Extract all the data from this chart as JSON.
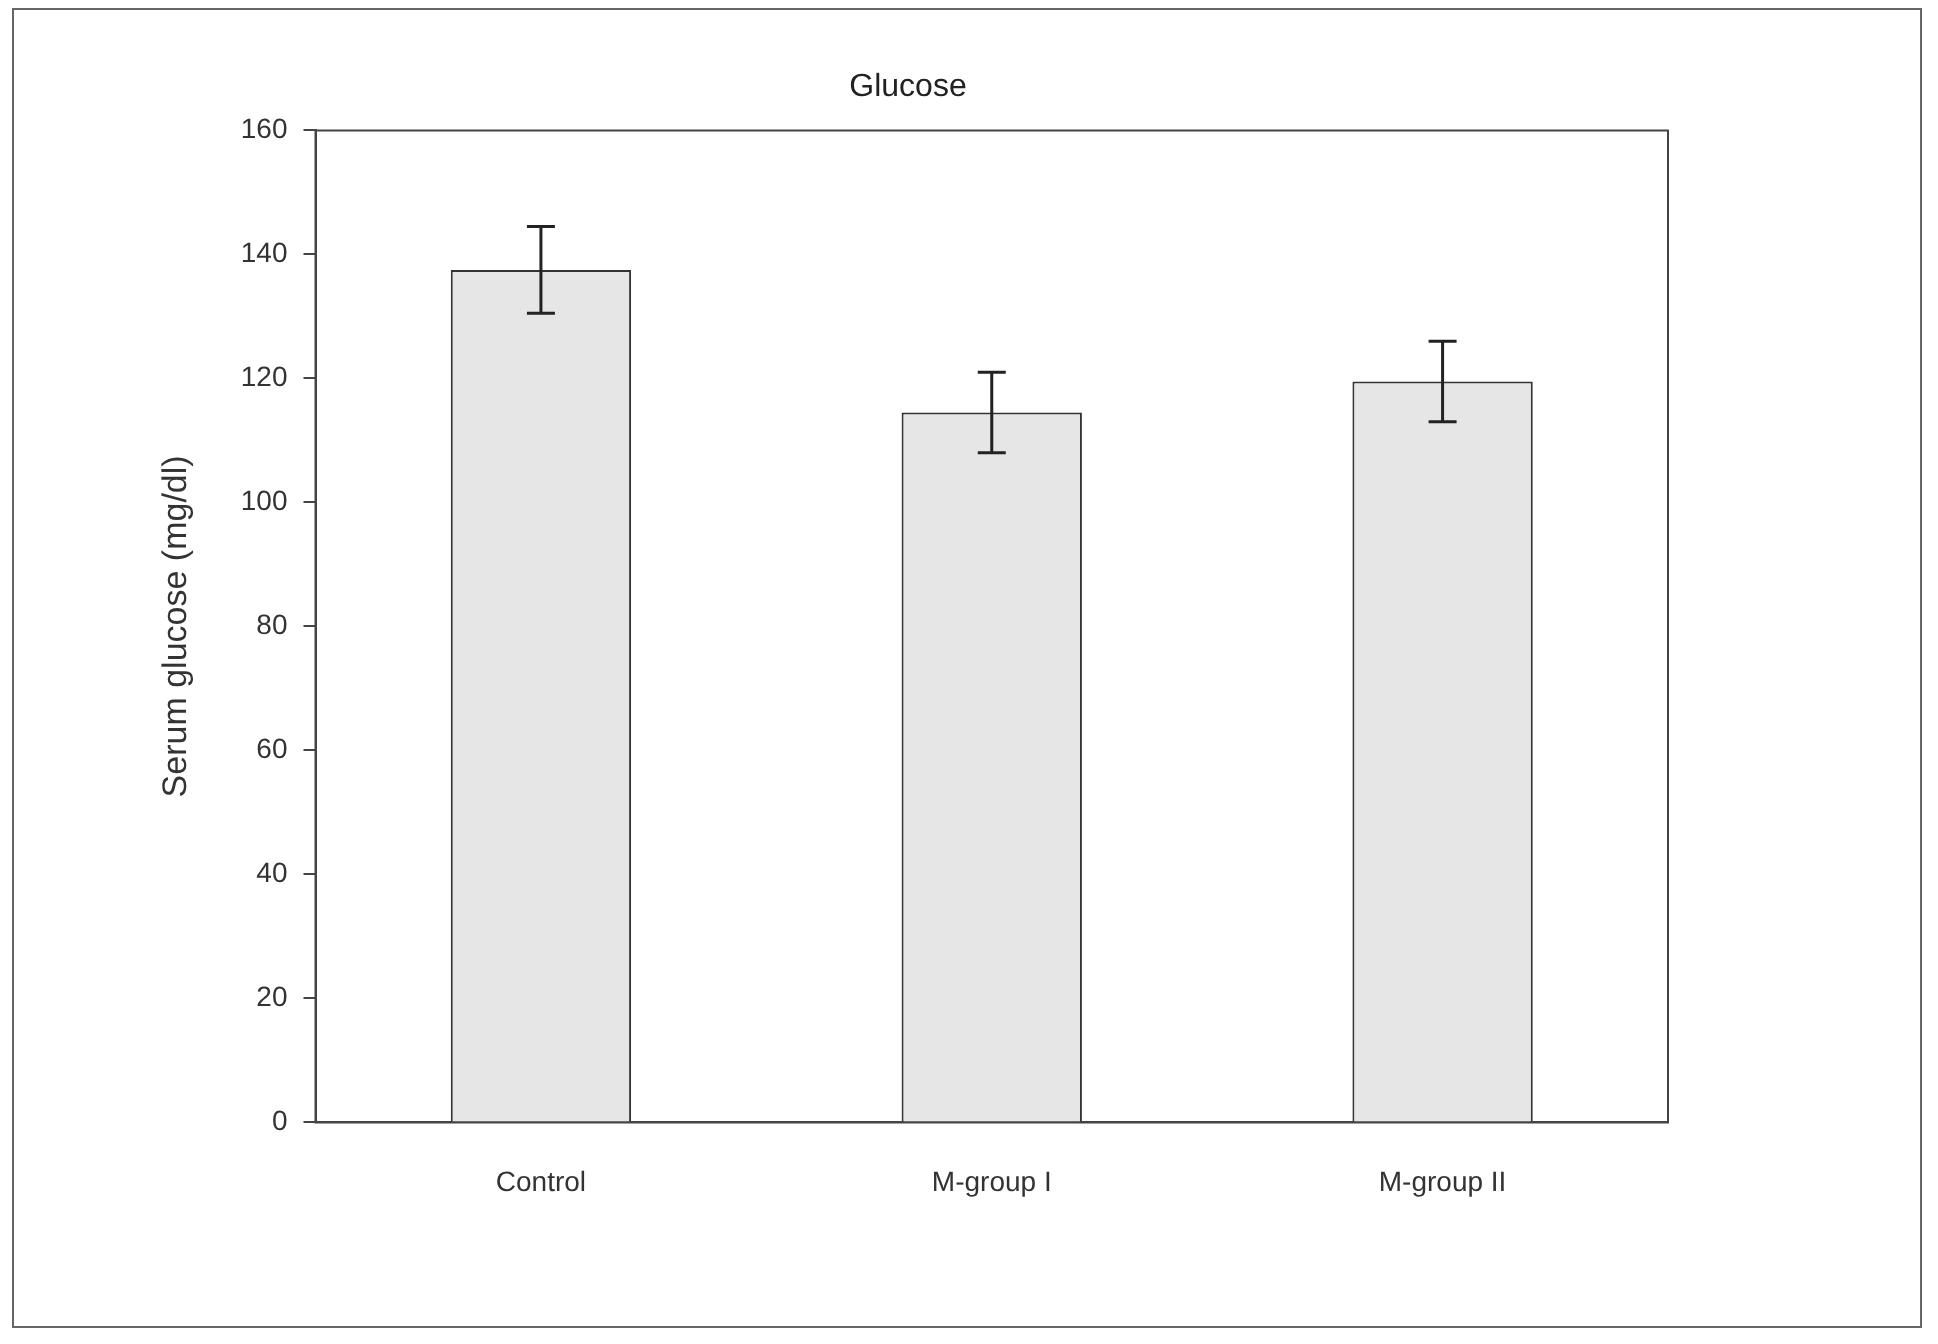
{
  "chart_data": {
    "type": "bar",
    "title": "Glucose",
    "ylabel": "Serum glucose (mg/dl)",
    "categories": [
      "Control",
      "M-group I",
      "M-group II"
    ],
    "series": [
      {
        "color": "#e6e6e6",
        "values": [
          137.5,
          114.5,
          119.5
        ],
        "errors": [
          7,
          6.5,
          6.5
        ]
      }
    ],
    "ylim": [
      0,
      160
    ],
    "yticks": [
      0,
      20,
      40,
      60,
      80,
      100,
      120,
      140,
      160
    ],
    "grid": false,
    "legend": false
  }
}
